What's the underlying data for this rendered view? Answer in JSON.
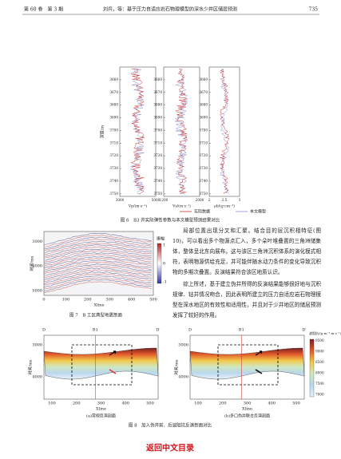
{
  "header": {
    "volume": "第 60 卷　第 3 期",
    "title": "刘兵，等：基于压力自适应岩石物理模型的深水少井区储层预测",
    "page": "735"
  },
  "figure6": {
    "y_label": "深度/m",
    "depth_ticks": [
      3660,
      3670,
      3680,
      3690,
      3700,
      3710,
      3720,
      3730,
      3740,
      3750
    ],
    "panels": [
      {
        "xticks": [
          3000,
          5000
        ],
        "x_label": "Vp/(m·s⁻¹)"
      },
      {
        "xticks": [
          1200,
          2000
        ],
        "x_label": "Vs/(m·s⁻¹)"
      },
      {
        "xticks": [
          2,
          2.5,
          3
        ],
        "x_label": "ρb/(g·cm⁻³)"
      }
    ],
    "legend": [
      "实际数据",
      "本文模型"
    ],
    "caption": "图 6　B3 井实际弹性参数与本文模型预测结果对比"
  },
  "figure7": {
    "y_label": "时间/ms",
    "yticks": [
      3000,
      4000,
      5000
    ],
    "x_label": "Xline",
    "xticks": [
      0,
      100,
      200,
      300,
      400,
      500
    ],
    "colorbar_label": "振幅",
    "colorbar_ticks": [
      1,
      0,
      -1
    ],
    "caption": "图 7　B 工区典型地震剖面"
  },
  "body_text": [
    "局部位置出现分叉和汇聚。结合目的层沉积相特征(图 10)，可以看出多个物源点汇入，多个朵叶堆叠置的三角洲储集体，整体呈北东向展布。这与该区三角洲沉积体系的演化模式相符，表明物源供给充足，并可能伴随水动力条件的变化导致沉积物的多期次叠置。反演结果符合该区地质认识。",
    "综上所述，基于建立伪井所得的反演结果能够很好地与沉积规律、钻井情况吻合，因此表明所建立的压力自适应岩石物理模型在深水地区的有效性和适用性，并且对于少井地区的储层预测发挥了较好的作用。"
  ],
  "figure8": {
    "top_labels": [
      "D",
      "B1",
      "D′"
    ],
    "y_label": "时间/ms",
    "yticks": [
      3000,
      4000
    ],
    "x_label": "Xline",
    "xticks": [
      100,
      200,
      300,
      400,
      500
    ],
    "subcaptions": [
      "(a)常规反演剖面",
      "(b)多口伪井联合反演剖面"
    ],
    "colorbar_label": "波阻抗/(g·m⁻³·m·s⁻¹)",
    "colorbar_ticks": [
      9500,
      9000,
      8500,
      8000,
      7500,
      7000
    ],
    "caption": "图 8　加入伪井前、后波阻抗反演剖面对比"
  },
  "footer_link": "返回中文目录"
}
